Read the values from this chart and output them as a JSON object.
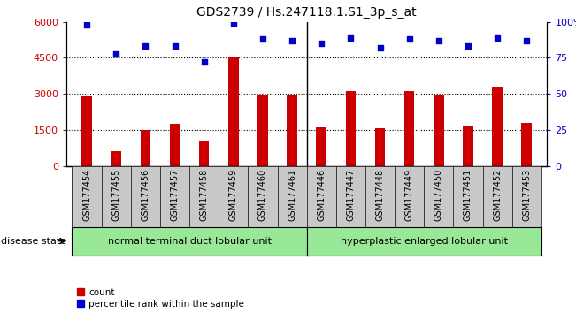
{
  "title": "GDS2739 / Hs.247118.1.S1_3p_s_at",
  "categories": [
    "GSM177454",
    "GSM177455",
    "GSM177456",
    "GSM177457",
    "GSM177458",
    "GSM177459",
    "GSM177460",
    "GSM177461",
    "GSM177446",
    "GSM177447",
    "GSM177448",
    "GSM177449",
    "GSM177450",
    "GSM177451",
    "GSM177452",
    "GSM177453"
  ],
  "counts": [
    2900,
    600,
    1500,
    1750,
    1050,
    4500,
    2950,
    2980,
    1600,
    3100,
    1580,
    3100,
    2950,
    1680,
    3300,
    1800
  ],
  "percentiles": [
    98,
    78,
    83,
    83,
    72,
    99,
    88,
    87,
    85,
    89,
    82,
    88,
    87,
    83,
    89,
    87
  ],
  "bar_color": "#cc0000",
  "dot_color": "#0000cc",
  "ylim_left": [
    0,
    6000
  ],
  "ylim_right": [
    0,
    100
  ],
  "yticks_left": [
    0,
    1500,
    3000,
    4500,
    6000
  ],
  "yticks_right": [
    0,
    25,
    50,
    75,
    100
  ],
  "group1_label": "normal terminal duct lobular unit",
  "group2_label": "hyperplastic enlarged lobular unit",
  "group1_count": 8,
  "group2_count": 8,
  "group1_color": "#98e898",
  "group2_color": "#98e898",
  "disease_state_label": "disease state",
  "legend_count_label": "count",
  "legend_percentile_label": "percentile rank within the sample",
  "title_fontsize": 10,
  "tick_fontsize": 7,
  "axis_label_color_left": "#cc0000",
  "axis_label_color_right": "#0000cc",
  "xtick_bg_color": "#c8c8c8",
  "separator_color": "#000000"
}
